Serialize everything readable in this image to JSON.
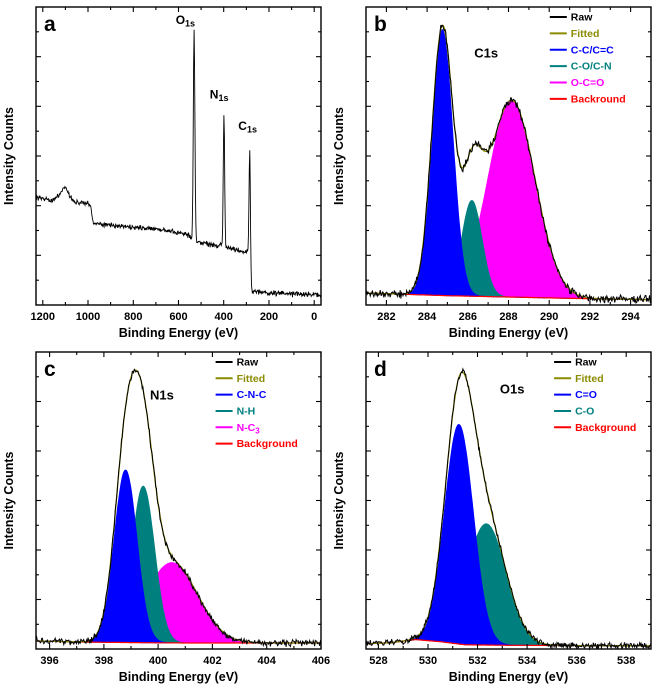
{
  "figure": {
    "background": "#ffffff"
  },
  "chart_data": [
    {
      "type": "line",
      "panel_label": "a",
      "title": "",
      "xlabel": "Binding Energy (eV)",
      "ylabel": "Intensity Counts",
      "xlim": [
        1230,
        -30
      ],
      "ylim": [
        0,
        100
      ],
      "x_major_ticks": [
        1200,
        1000,
        800,
        600,
        400,
        200,
        0
      ],
      "x_minor_step": 100,
      "line_color": "#000000",
      "noise": 1.1,
      "baseline_points": [
        [
          1230,
          36
        ],
        [
          1180,
          35.5
        ],
        [
          1150,
          35
        ],
        [
          1125,
          37.5
        ],
        [
          1100,
          40
        ],
        [
          1085,
          37
        ],
        [
          1060,
          34.5
        ],
        [
          1000,
          34
        ],
        [
          988,
          33
        ],
        [
          978,
          27.5
        ],
        [
          940,
          27
        ],
        [
          860,
          26.5
        ],
        [
          780,
          26
        ],
        [
          700,
          25.5
        ],
        [
          620,
          24.5
        ],
        [
          565,
          24
        ],
        [
          545,
          22.5
        ],
        [
          520,
          21
        ],
        [
          480,
          20.5
        ],
        [
          440,
          20
        ],
        [
          410,
          20
        ],
        [
          385,
          19
        ],
        [
          340,
          18.5
        ],
        [
          300,
          18
        ],
        [
          289,
          17.5
        ],
        [
          283,
          10
        ],
        [
          277,
          5
        ],
        [
          255,
          4.5
        ],
        [
          200,
          4
        ],
        [
          120,
          3.7
        ],
        [
          40,
          3.5
        ],
        [
          -30,
          3.4
        ]
      ],
      "peaks": [
        {
          "name": "O1s",
          "center": 531,
          "sigma": 3.5,
          "amp": 70
        },
        {
          "name": "N1s",
          "center": 399,
          "sigma": 3.0,
          "amp": 44
        },
        {
          "name": "C1s",
          "center": 285,
          "sigma": 3.0,
          "amp": 39
        }
      ],
      "peak_labels": [
        {
          "text": "O",
          "sub": "1s",
          "fx": 0.49,
          "fy": 0.02
        },
        {
          "text": "N",
          "sub": "1s",
          "fx": 0.61,
          "fy": 0.27
        },
        {
          "text": "C",
          "sub": "1s",
          "fx": 0.71,
          "fy": 0.375
        }
      ]
    },
    {
      "type": "area",
      "panel_label": "b",
      "title": "C1s",
      "title_pos": [
        0.38,
        0.13
      ],
      "xlabel": "Binding Energy (eV)",
      "ylabel": "Intensity Counts",
      "xlim": [
        281,
        295
      ],
      "ylim": [
        0,
        112
      ],
      "x_major_ticks": [
        282,
        284,
        286,
        288,
        290,
        292,
        294
      ],
      "x_minor_step": 1,
      "raw_color": "#000000",
      "fitted_color": "#8b8b00",
      "background_color": "#ff0000",
      "noise": 1.8,
      "background_points": [
        [
          281,
          4.5
        ],
        [
          283,
          4
        ],
        [
          285,
          3.5
        ],
        [
          288,
          3
        ],
        [
          291,
          2.5
        ],
        [
          295,
          2
        ]
      ],
      "components": [
        {
          "label": "C-C/C=C",
          "color": "#0000ff",
          "center": 284.75,
          "sigma": 0.52,
          "amp": 100
        },
        {
          "label": "C-O/C-N",
          "color": "#007f7f",
          "center": 286.2,
          "sigma": 0.5,
          "amp": 36
        },
        {
          "label": "O-C=O",
          "color": "#ff00ff",
          "center": 288.15,
          "sigma": 1.15,
          "amp": 74
        }
      ],
      "legend": {
        "fx": 0.645,
        "fy": 0.015,
        "dy": 0.055,
        "entries": [
          {
            "label": "Raw",
            "color": "#000000"
          },
          {
            "label": "Fitted",
            "color": "#8b8b00"
          },
          {
            "label": "C-C/C=C",
            "color": "#0000ff"
          },
          {
            "label": "C-O/C-N",
            "color": "#007f7f"
          },
          {
            "label": "O-C=O",
            "color": "#ff00ff"
          },
          {
            "label": "Backround",
            "color": "#ff0000"
          }
        ]
      }
    },
    {
      "type": "area",
      "panel_label": "c",
      "title": "N1s",
      "title_pos": [
        0.4,
        0.12
      ],
      "xlabel": "Binding Energy (eV)",
      "ylabel": "Intensity Counts",
      "xlim": [
        395.5,
        406
      ],
      "ylim": [
        0,
        148
      ],
      "x_major_ticks": [
        396,
        398,
        400,
        402,
        404,
        406
      ],
      "x_minor_step": 1,
      "raw_color": "#000000",
      "fitted_color": "#8b8b00",
      "background_color": "#ff0000",
      "noise": 2.0,
      "background_points": [
        [
          395.5,
          4
        ],
        [
          397,
          3.5
        ],
        [
          399,
          3.2
        ],
        [
          401,
          3
        ],
        [
          404,
          3
        ],
        [
          406,
          3
        ]
      ],
      "components": [
        {
          "label": "C-N-C",
          "color": "#0000ff",
          "center": 398.8,
          "sigma": 0.42,
          "amp": 86
        },
        {
          "label": "N-H",
          "color": "#007f7f",
          "center": 399.45,
          "sigma": 0.42,
          "amp": 78
        },
        {
          "label": "N-C",
          "sub": "3",
          "color": "#ff00ff",
          "center": 400.5,
          "sigma": 0.95,
          "amp": 40
        }
      ],
      "legend": {
        "fx": 0.63,
        "fy": 0.015,
        "dy": 0.055,
        "entries": [
          {
            "label": "Raw",
            "color": "#000000"
          },
          {
            "label": "Fitted",
            "color": "#8b8b00"
          },
          {
            "label": "C-N-C",
            "color": "#0000ff"
          },
          {
            "label": "N-H",
            "color": "#007f7f"
          },
          {
            "label": "N-C",
            "sub": "3",
            "color": "#ff00ff"
          },
          {
            "label": "Background",
            "color": "#ff0000"
          }
        ]
      }
    },
    {
      "type": "area",
      "panel_label": "d",
      "title": "O1s",
      "title_pos": [
        0.47,
        0.1
      ],
      "xlabel": "Binding Energy (eV)",
      "ylabel": "Intensity Counts",
      "xlim": [
        527.5,
        539
      ],
      "ylim": [
        0,
        142
      ],
      "x_major_ticks": [
        528,
        530,
        532,
        534,
        536,
        538
      ],
      "x_minor_step": 1,
      "raw_color": "#000000",
      "fitted_color": "#8b8b00",
      "background_color": "#ff0000",
      "noise": 1.8,
      "background_points": [
        [
          527.5,
          2.5
        ],
        [
          528.5,
          3
        ],
        [
          529.5,
          4.5
        ],
        [
          530.5,
          3.5
        ],
        [
          531.5,
          2
        ],
        [
          533,
          1.8
        ],
        [
          539,
          1.5
        ]
      ],
      "components": [
        {
          "label": "C=O",
          "color": "#0000ff",
          "center": 531.25,
          "sigma": 0.58,
          "amp": 105
        },
        {
          "label": "C-O",
          "color": "#007f7f",
          "center": 532.35,
          "sigma": 0.8,
          "amp": 58
        }
      ],
      "legend": {
        "fx": 0.66,
        "fy": 0.015,
        "dy": 0.055,
        "entries": [
          {
            "label": "Raw",
            "color": "#000000"
          },
          {
            "label": "Fitted",
            "color": "#8b8b00"
          },
          {
            "label": "C=O",
            "color": "#0000ff"
          },
          {
            "label": "C-O",
            "color": "#007f7f"
          },
          {
            "label": "Background",
            "color": "#ff0000"
          }
        ]
      }
    }
  ]
}
